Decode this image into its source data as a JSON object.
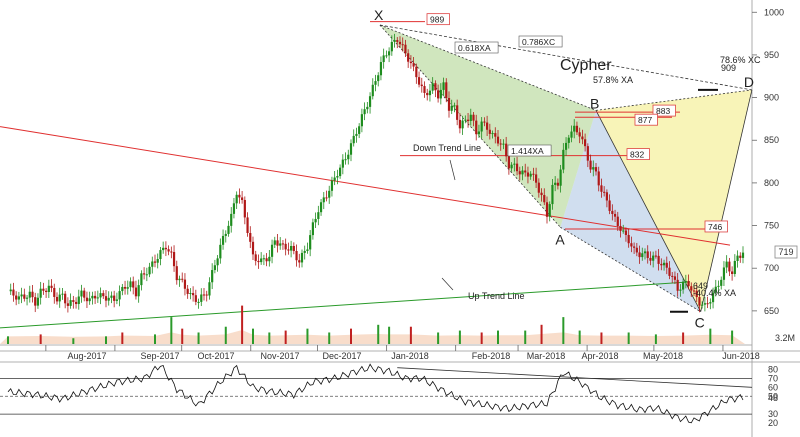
{
  "chart_data": {
    "type": "candlestick",
    "pattern": "Cypher",
    "x_axis_labels": [
      "Aug-2017",
      "Sep-2017",
      "Oct-2017",
      "Nov-2017",
      "Dec-2017",
      "Jan-2018",
      "Feb-2018",
      "Mar-2018",
      "Apr-2018",
      "May-2018",
      "Jun-2018"
    ],
    "y_axis_labels": [
      "1000",
      "950",
      "900",
      "850",
      "800",
      "750",
      "700",
      "650"
    ],
    "ylim": [
      610,
      1005
    ],
    "last_price_label": "719",
    "volume_scale_label": "3.2M",
    "pivots": [
      {
        "label": "X",
        "date": "2017-12-29",
        "price": 985
      },
      {
        "label": "A",
        "date": "2018-03-20",
        "price": 748
      },
      {
        "label": "B",
        "date": "2018-04-05",
        "price": 885
      },
      {
        "label": "C",
        "date": "2018-05-22",
        "price": 649
      },
      {
        "label": "D",
        "date": "2018-06-14",
        "price": 909
      }
    ],
    "annotations": {
      "x_ab_ratio": "0.618XA",
      "xd_ratio": "0.786XC",
      "ac_ratio": "1.414XA",
      "b_ratio": "57.8% XA",
      "d_text": "78.6% XC",
      "d_value": "909",
      "c_text": "649",
      "c_ratio": "-40.4% XA",
      "down_trend_label": "Down Trend Line",
      "up_trend_label": "Up Trend Line"
    },
    "level_boxes": [
      "989",
      "883",
      "877",
      "832",
      "746"
    ],
    "oscillator_labels": [
      "80",
      "70",
      "60",
      "50",
      "48",
      "30",
      "20"
    ],
    "price_path": [
      [
        0,
        673
      ],
      [
        4,
        665
      ],
      [
        8,
        669
      ],
      [
        10,
        660
      ],
      [
        12,
        672
      ],
      [
        15,
        678
      ],
      [
        18,
        664
      ],
      [
        20,
        668
      ],
      [
        22,
        657
      ],
      [
        25,
        662
      ],
      [
        27,
        670
      ],
      [
        30,
        662
      ],
      [
        32,
        668
      ],
      [
        36,
        666
      ],
      [
        39,
        663
      ],
      [
        43,
        679
      ],
      [
        45,
        681
      ],
      [
        47,
        671
      ],
      [
        49,
        690
      ],
      [
        52,
        700
      ],
      [
        56,
        718
      ],
      [
        58,
        726
      ],
      [
        60,
        715
      ],
      [
        62,
        690
      ],
      [
        64,
        683
      ],
      [
        67,
        668
      ],
      [
        70,
        662
      ],
      [
        73,
        672
      ],
      [
        76,
        705
      ],
      [
        79,
        735
      ],
      [
        82,
        760
      ],
      [
        84,
        790
      ],
      [
        86,
        776
      ],
      [
        88,
        745
      ],
      [
        90,
        713
      ],
      [
        93,
        708
      ],
      [
        96,
        714
      ],
      [
        98,
        733
      ],
      [
        101,
        725
      ],
      [
        104,
        723
      ],
      [
        107,
        708
      ],
      [
        110,
        726
      ],
      [
        112,
        750
      ],
      [
        114,
        769
      ],
      [
        117,
        786
      ],
      [
        121,
        812
      ],
      [
        124,
        829
      ],
      [
        127,
        852
      ],
      [
        130,
        877
      ],
      [
        132,
        893
      ],
      [
        135,
        920
      ],
      [
        137,
        940
      ],
      [
        139,
        952
      ],
      [
        141,
        962
      ],
      [
        143,
        969
      ],
      [
        145,
        958
      ],
      [
        147,
        946
      ],
      [
        150,
        926
      ],
      [
        153,
        903
      ],
      [
        156,
        913
      ],
      [
        158,
        903
      ],
      [
        160,
        914
      ],
      [
        162,
        888
      ],
      [
        164,
        888
      ],
      [
        166,
        866
      ],
      [
        170,
        880
      ],
      [
        172,
        858
      ],
      [
        174,
        870
      ],
      [
        176,
        865
      ],
      [
        178,
        855
      ],
      [
        180,
        850
      ],
      [
        182,
        842
      ],
      [
        184,
        821
      ],
      [
        186,
        819
      ],
      [
        188,
        813
      ],
      [
        190,
        810
      ],
      [
        192,
        812
      ],
      [
        194,
        800
      ],
      [
        196,
        785
      ],
      [
        198,
        762
      ],
      [
        200,
        795
      ],
      [
        202,
        800
      ],
      [
        204,
        835
      ],
      [
        206,
        857
      ],
      [
        208,
        863
      ],
      [
        210,
        858
      ],
      [
        212,
        840
      ],
      [
        214,
        818
      ],
      [
        216,
        812
      ],
      [
        218,
        790
      ],
      [
        220,
        780
      ],
      [
        222,
        762
      ],
      [
        224,
        752
      ],
      [
        226,
        741
      ],
      [
        228,
        733
      ],
      [
        230,
        720
      ],
      [
        232,
        717
      ],
      [
        234,
        716
      ],
      [
        236,
        712
      ],
      [
        238,
        712
      ],
      [
        240,
        705
      ],
      [
        242,
        700
      ],
      [
        244,
        690
      ],
      [
        246,
        675
      ],
      [
        248,
        682
      ],
      [
        250,
        682
      ],
      [
        252,
        670
      ],
      [
        254,
        660
      ],
      [
        256,
        655
      ],
      [
        258,
        664
      ],
      [
        260,
        675
      ],
      [
        262,
        689
      ],
      [
        264,
        706
      ],
      [
        266,
        694
      ],
      [
        268,
        715
      ],
      [
        270,
        717
      ]
    ],
    "oscillator_path": [
      [
        0,
        55
      ],
      [
        10,
        52
      ],
      [
        20,
        47
      ],
      [
        30,
        57
      ],
      [
        40,
        66
      ],
      [
        50,
        70
      ],
      [
        56,
        85
      ],
      [
        62,
        58
      ],
      [
        70,
        40
      ],
      [
        78,
        66
      ],
      [
        84,
        82
      ],
      [
        90,
        60
      ],
      [
        97,
        55
      ],
      [
        105,
        52
      ],
      [
        112,
        66
      ],
      [
        120,
        70
      ],
      [
        128,
        78
      ],
      [
        133,
        82
      ],
      [
        140,
        78
      ],
      [
        146,
        70
      ],
      [
        152,
        70
      ],
      [
        160,
        56
      ],
      [
        168,
        44
      ],
      [
        176,
        40
      ],
      [
        184,
        36
      ],
      [
        192,
        40
      ],
      [
        198,
        42
      ],
      [
        204,
        77
      ],
      [
        210,
        66
      ],
      [
        218,
        48
      ],
      [
        224,
        40
      ],
      [
        232,
        35
      ],
      [
        238,
        37
      ],
      [
        246,
        26
      ],
      [
        252,
        22
      ],
      [
        258,
        34
      ],
      [
        264,
        46
      ],
      [
        270,
        49
      ]
    ],
    "volume": [
      [
        0,
        4
      ],
      [
        12,
        5
      ],
      [
        24,
        3
      ],
      [
        36,
        4
      ],
      [
        42,
        6
      ],
      [
        54,
        5
      ],
      [
        60,
        14
      ],
      [
        64,
        8
      ],
      [
        70,
        6
      ],
      [
        80,
        9
      ],
      [
        86,
        20
      ],
      [
        90,
        8
      ],
      [
        96,
        6
      ],
      [
        102,
        7
      ],
      [
        110,
        8
      ],
      [
        118,
        6
      ],
      [
        126,
        8
      ],
      [
        136,
        10
      ],
      [
        140,
        9
      ],
      [
        148,
        9
      ],
      [
        158,
        6
      ],
      [
        166,
        7
      ],
      [
        174,
        6
      ],
      [
        180,
        7
      ],
      [
        190,
        7
      ],
      [
        196,
        10
      ],
      [
        204,
        14
      ],
      [
        210,
        7
      ],
      [
        218,
        6
      ],
      [
        228,
        6
      ],
      [
        238,
        5
      ],
      [
        248,
        6
      ],
      [
        258,
        8
      ],
      [
        266,
        7
      ]
    ]
  }
}
